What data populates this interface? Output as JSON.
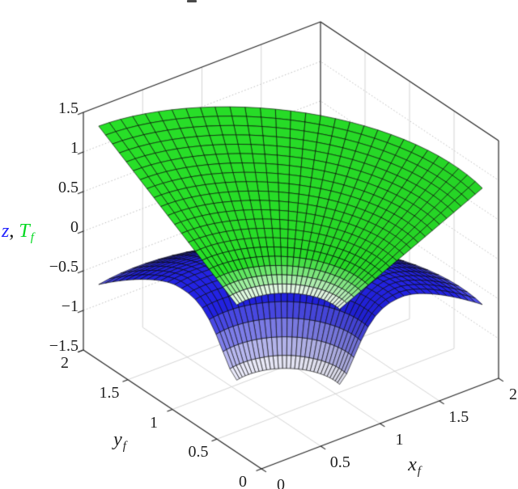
{
  "chart_data": {
    "type": "surface3d",
    "title": "",
    "view": {
      "azimuth": -37.5,
      "elevation": 30
    },
    "axes": {
      "x": {
        "label": "x",
        "label_sub": "f",
        "lim": [
          0,
          2
        ],
        "ticks": [
          "0",
          "0.5",
          "1",
          "1.5",
          "2"
        ],
        "tick_values": [
          0,
          0.5,
          1,
          1.5,
          2
        ]
      },
      "y": {
        "label": "y",
        "label_sub": "f",
        "lim": [
          0,
          2
        ],
        "ticks": [
          "0",
          "0.5",
          "1",
          "1.5",
          "2"
        ],
        "tick_values": [
          0,
          0.5,
          1,
          1.5,
          2
        ]
      },
      "z": {
        "label_z": "z",
        "label_comma": ",",
        "label_T": "T",
        "label_T_sub": "f",
        "z_color": "#2222ff",
        "comma_color": "#111111",
        "T_color": "#00d81e",
        "lim": [
          -1.5,
          1.5
        ],
        "ticks": [
          "1.5",
          "1",
          "0.5",
          "0",
          "−0.5",
          "−1",
          "−1.5"
        ],
        "tick_values": [
          1.5,
          1,
          0.5,
          0,
          -0.5,
          -1,
          -1.5
        ]
      }
    },
    "grid": {
      "shown": true,
      "z_lines": [
        -1,
        -0.5,
        0,
        0.5,
        1
      ],
      "x_lines": [
        0.5,
        1,
        1.5
      ],
      "y_lines": [
        0.5,
        1,
        1.5
      ],
      "wall_dotted_color": "#b5b5b5",
      "wall_solid_color": "#cfcfcf",
      "floor_color": "#cfcfcf"
    },
    "box_color": "#222222",
    "tick_color": "#222222",
    "label_color": "#1f1f1f",
    "surfaces": [
      {
        "name": "z",
        "legend_note": "blue dome surface with funnel-shaped dip near origin",
        "base_color": [
          35,
          35,
          228
        ],
        "center": [
          0.65,
          0.6
        ],
        "theta_deg": [
          -8,
          104
        ],
        "r_inner": 0.42,
        "r_outer": [
          1.52,
          1.62
        ],
        "profile": "dome_funnel",
        "z_base": -0.55,
        "funnel_depth": 0.9,
        "funnel_width": 0.18,
        "funnel_pow": 1.6,
        "tail_drop": 0.4,
        "tail_start": 0.45,
        "tail_pow": 1.5,
        "z_white": -1.45,
        "z_full": -0.78,
        "mesh": [
          20,
          30
        ]
      },
      {
        "name": "T_f",
        "legend_note": "green cone-shaped funnel boundary surface",
        "base_color": [
          40,
          224,
          40
        ],
        "center": [
          0.65,
          0.6
        ],
        "theta_deg": [
          -8,
          104
        ],
        "r_inner": 0.42,
        "r_outer": [
          1.52,
          1.62
        ],
        "profile": "cone",
        "z_tip": -0.5,
        "z_rim": [
          0.52,
          1.05
        ],
        "z_rim_pow": 1.6,
        "z_white": -0.5,
        "z_full": -0.26,
        "mesh": [
          20,
          30
        ]
      }
    ],
    "projection": {
      "origin": [
        323,
        580
      ],
      "ex": [
        146.5,
        -56
      ],
      "ey": [
        -110,
        -73.5
      ],
      "ez_per_unit": [
        0,
        -98
      ],
      "z_offset": 1.5
    },
    "depth_dir": [
      -0.527,
      -0.687,
      0.333
    ],
    "light_dir": [
      0.3,
      -0.4,
      0.87
    ]
  }
}
